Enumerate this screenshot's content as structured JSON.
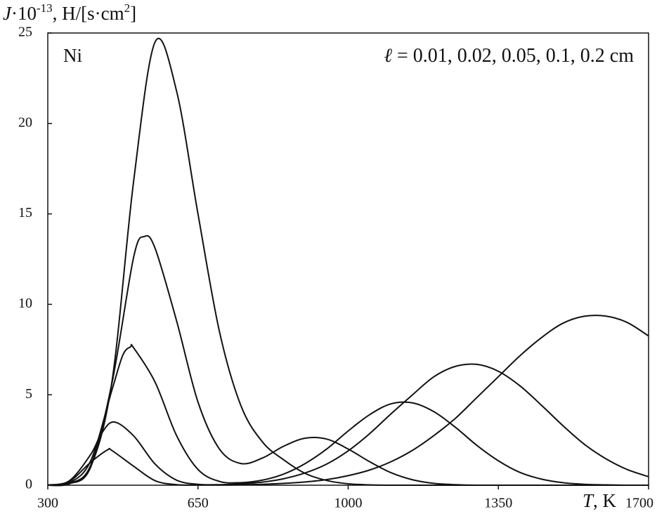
{
  "chart_data": {
    "type": "line",
    "y_label": [
      "J",
      "·10",
      "-13",
      ", H/[s·cm",
      "2",
      "]"
    ],
    "x_label": [
      "T",
      ", K"
    ],
    "annotations": [
      "Ni",
      "ℓ",
      " = 0.01, 0.02, 0.05, 0.1, 0.2 cm"
    ],
    "xlim": [
      300,
      1700
    ],
    "ylim": [
      0,
      25
    ],
    "xticks": [
      300,
      650,
      1000,
      1350,
      1700
    ],
    "yticks": [
      0,
      5,
      10,
      15,
      20,
      25
    ],
    "grid": false,
    "series": [
      {
        "color": "#111111",
        "x": [
          300,
          350,
          400,
          439,
          450,
          500,
          550,
          600,
          650,
          700,
          750,
          800,
          850,
          900,
          950,
          1000,
          1050,
          1100,
          1150,
          1200,
          1250,
          1300,
          1350,
          1400,
          1450,
          1500,
          1550,
          1600,
          1650,
          1700
        ],
        "values": [
          0.01,
          0.21,
          1.27,
          1.95,
          1.91,
          1.05,
          0.25,
          0.03,
          0.01,
          0.01,
          0.02,
          0.05,
          0.1,
          0.18,
          0.31,
          0.53,
          0.84,
          1.3,
          1.93,
          2.75,
          3.7,
          4.85,
          6.0,
          7.15,
          8.15,
          8.95,
          9.34,
          9.35,
          9.0,
          8.25
        ]
      },
      {
        "color": "#111111",
        "x": [
          300,
          350,
          400,
          425,
          454,
          500,
          550,
          600,
          650,
          700,
          750,
          800,
          850,
          900,
          950,
          1000,
          1050,
          1100,
          1150,
          1200,
          1250,
          1300,
          1350,
          1400,
          1450,
          1500,
          1550,
          1600,
          1650,
          1700
        ],
        "values": [
          0.01,
          0.24,
          1.7,
          2.85,
          3.5,
          2.73,
          1.17,
          0.28,
          0.05,
          0.03,
          0.08,
          0.17,
          0.36,
          0.68,
          1.17,
          1.9,
          2.85,
          3.95,
          5.0,
          6.0,
          6.57,
          6.68,
          6.3,
          5.5,
          4.43,
          3.3,
          2.27,
          1.47,
          0.87,
          0.47
        ]
      },
      {
        "color": "#111111",
        "x": [
          300,
          350,
          400,
          450,
          475,
          493,
          500,
          550,
          600,
          650,
          700,
          750,
          800,
          850,
          900,
          950,
          1000,
          1050,
          1100,
          1150,
          1200,
          1250,
          1300,
          1350,
          1400,
          1450,
          1500,
          1550,
          1600,
          1650,
          1700
        ],
        "values": [
          0,
          0.13,
          1.35,
          5.3,
          7.2,
          7.65,
          7.6,
          5.7,
          2.75,
          0.87,
          0.21,
          0.14,
          0.28,
          0.62,
          1.2,
          2.0,
          3.0,
          3.9,
          4.5,
          4.55,
          4.06,
          3.2,
          2.2,
          1.35,
          0.71,
          0.34,
          0.14,
          0.05,
          0.02,
          0,
          0
        ]
      },
      {
        "color": "#111111",
        "x": [
          300,
          350,
          400,
          450,
          500,
          525,
          550,
          600,
          650,
          700,
          750,
          800,
          850,
          900,
          950,
          1000,
          1050,
          1100,
          1150,
          1200,
          1250,
          1300,
          1350,
          1400,
          1450,
          1500,
          1550,
          1600,
          1650,
          1700
        ],
        "values": [
          0,
          0.1,
          1.1,
          5.7,
          12.6,
          13.75,
          13.1,
          9.1,
          4.6,
          2.0,
          1.2,
          1.5,
          2.16,
          2.6,
          2.55,
          2.0,
          1.3,
          0.69,
          0.3,
          0.1,
          0.03,
          0,
          0,
          0,
          0,
          0,
          0,
          0,
          0,
          0
        ]
      },
      {
        "color": "#111111",
        "x": [
          300,
          350,
          400,
          450,
          500,
          550,
          600,
          650,
          700,
          750,
          800,
          850,
          900,
          950,
          1000,
          1050,
          1100,
          1150,
          1200,
          1250,
          1300,
          1350,
          1400,
          1450,
          1500,
          1550,
          1600,
          1650,
          1700
        ],
        "values": [
          0,
          0.08,
          1.0,
          5.8,
          16.8,
          24.5,
          21.8,
          15.0,
          8.5,
          4.4,
          2.4,
          1.4,
          0.65,
          0.26,
          0.08,
          0.02,
          0,
          0,
          0,
          0,
          0,
          0,
          0,
          0,
          0,
          0,
          0,
          0,
          0
        ]
      }
    ]
  }
}
